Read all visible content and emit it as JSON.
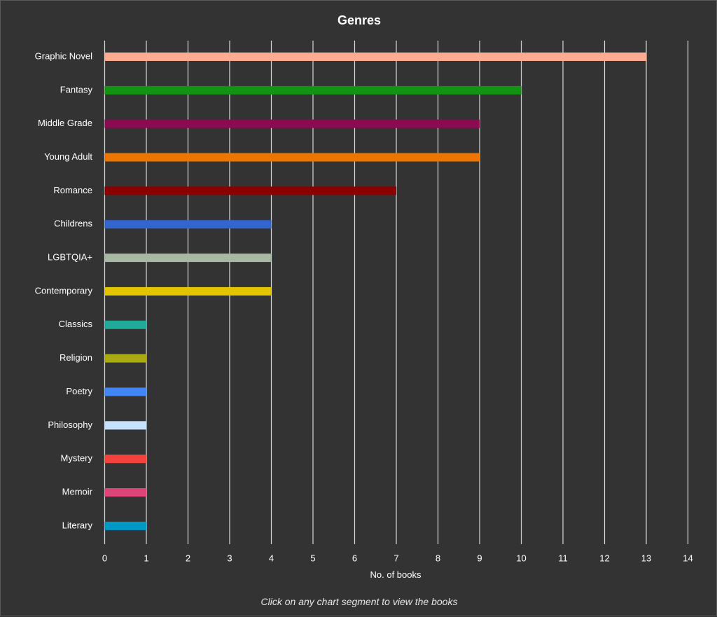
{
  "chart_data": {
    "type": "bar",
    "orientation": "horizontal",
    "title": "Genres",
    "xlabel": "No. of books",
    "ylabel": "",
    "xlim": [
      0,
      14
    ],
    "xticks": [
      "0",
      "1",
      "2",
      "3",
      "4",
      "5",
      "6",
      "7",
      "8",
      "9",
      "10",
      "11",
      "12",
      "13",
      "14"
    ],
    "grid": true,
    "categories": [
      "Graphic Novel",
      "Fantasy",
      "Middle Grade",
      "Young Adult",
      "Romance",
      "Childrens",
      "LGBTQIA+",
      "Contemporary",
      "Classics",
      "Religion",
      "Poetry",
      "Philosophy",
      "Mystery",
      "Memoir",
      "Literary"
    ],
    "values": [
      13,
      10,
      9,
      9,
      7,
      4,
      4,
      4,
      1,
      1,
      1,
      1,
      1,
      1,
      1
    ],
    "colors": [
      "#FFAB91",
      "#129412",
      "#8B0A50",
      "#EE7600",
      "#8B0000",
      "#3366CC",
      "#A9B8A2",
      "#E3C400",
      "#22AA99",
      "#AAAA11",
      "#4285F4",
      "#C6E2FF",
      "#F4433C",
      "#DD4477",
      "#0099C6"
    ]
  },
  "footer": {
    "note": "Click on any chart segment to view the books"
  },
  "theme": {
    "background": "#333333",
    "grid_color": "#d9d9d9",
    "text_color": "#ffffff"
  }
}
